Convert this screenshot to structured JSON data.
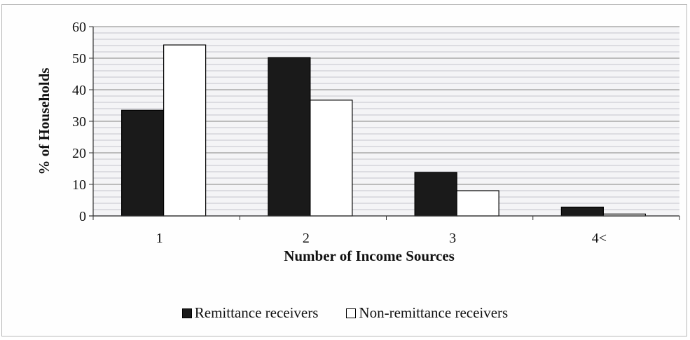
{
  "chart_data": {
    "type": "bar",
    "categories": [
      "1",
      "2",
      "3",
      "4<"
    ],
    "series": [
      {
        "name": "Remittance receivers",
        "values": [
          33.5,
          50.2,
          13.8,
          2.8
        ],
        "color": "#1a1a1a"
      },
      {
        "name": "Non-remittance receivers",
        "values": [
          54.2,
          36.7,
          8.0,
          0.6
        ],
        "color": "#ffffff"
      }
    ],
    "title": "",
    "xlabel": "Number of Income Sources",
    "ylabel": "% of Households",
    "ylim": [
      0,
      60
    ],
    "yticks": [
      "0",
      "10",
      "20",
      "30",
      "40",
      "50",
      "60"
    ],
    "grid": true,
    "legend_position": "bottom"
  }
}
